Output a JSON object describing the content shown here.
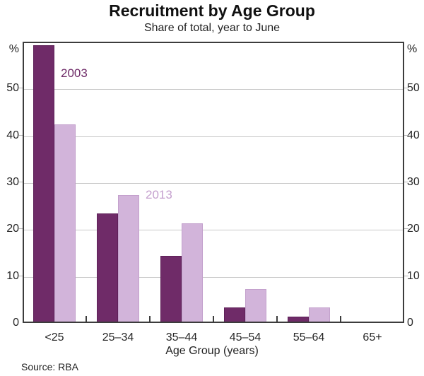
{
  "chart_data": {
    "type": "bar",
    "title": "Recruitment by Age Group",
    "subtitle": "Share of total, year to June",
    "categories": [
      "<25",
      "25–34",
      "35–44",
      "45–54",
      "55–64",
      "65+"
    ],
    "series": [
      {
        "name": "2003",
        "values": [
          59,
          23,
          14,
          3,
          1,
          0
        ],
        "color": "#6F2B68",
        "border_color": "#5e2158"
      },
      {
        "name": "2013",
        "values": [
          42,
          27,
          21,
          7,
          3,
          0
        ],
        "color": "#D2B4DA",
        "border_color": "#c3a0cc"
      }
    ],
    "xlabel": "Age Group (years)",
    "ylabel": "",
    "y_unit": "%",
    "y_ticks": [
      0,
      10,
      20,
      30,
      40,
      50
    ],
    "ylim": [
      0,
      60
    ],
    "grid": true,
    "legend": "inline-annotations",
    "annotations": [
      {
        "text": "2003",
        "color": "#6F2B68"
      },
      {
        "text": "2013",
        "color": "#C5A0CE"
      }
    ],
    "source": "Source: RBA"
  }
}
